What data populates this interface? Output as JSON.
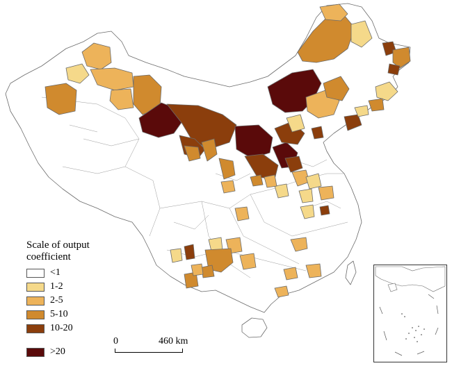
{
  "legend": {
    "title": "Scale of output coefficient",
    "items": [
      {
        "label": "<1",
        "color": "#ffffff"
      },
      {
        "label": "1-2",
        "color": "#f5d98a"
      },
      {
        "label": "2-5",
        "color": "#edb35a"
      },
      {
        "label": "5-10",
        "color": "#d08a2e"
      },
      {
        "label": "10-20",
        "color": "#8b3e0c"
      },
      {
        "label": ">20",
        "color": "#5a0a0a"
      }
    ]
  },
  "scale_bar": {
    "start": "0",
    "end": "460 km"
  },
  "colors": {
    "boundary": "#6a6a6a",
    "background": "#ffffff"
  }
}
